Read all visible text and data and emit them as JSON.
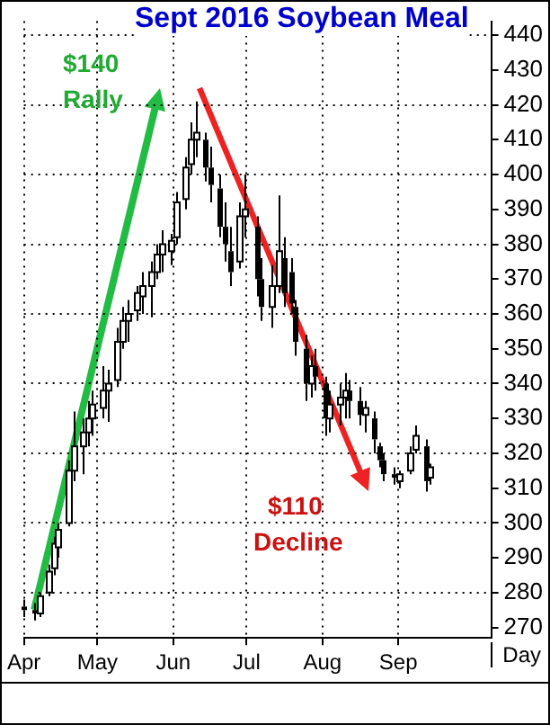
{
  "chart_data": {
    "type": "candlestick",
    "title": "Sept 2016 Soybean Meal",
    "xlabel": "Day",
    "annotations": [
      "$140",
      "Rally",
      "$110",
      "Decline"
    ],
    "x": [
      "2016-04-01",
      "2016-04-05",
      "2016-04-07",
      "2016-04-11",
      "2016-04-13",
      "2016-04-15",
      "2016-04-19",
      "2016-04-21",
      "2016-04-25",
      "2016-04-27",
      "2016-04-29",
      "2016-05-03",
      "2016-05-05",
      "2016-05-09",
      "2016-05-11",
      "2016-05-13",
      "2016-05-17",
      "2016-05-19",
      "2016-05-23",
      "2016-05-25",
      "2016-05-27",
      "2016-05-31",
      "2016-06-02",
      "2016-06-06",
      "2016-06-08",
      "2016-06-10",
      "2016-06-14",
      "2016-06-16",
      "2016-06-20",
      "2016-06-22",
      "2016-06-24",
      "2016-06-28",
      "2016-06-30",
      "2016-07-05",
      "2016-07-07",
      "2016-07-11",
      "2016-07-14",
      "2016-07-16",
      "2016-07-19",
      "2016-07-21",
      "2016-07-25",
      "2016-07-27",
      "2016-07-29",
      "2016-08-02",
      "2016-08-04",
      "2016-08-08",
      "2016-08-10",
      "2016-08-12",
      "2016-08-16",
      "2016-08-18",
      "2016-08-22",
      "2016-08-24",
      "2016-08-26",
      "2016-08-30",
      "2016-09-01",
      "2016-09-06",
      "2016-09-08",
      "2016-09-12",
      "2016-09-14"
    ],
    "ohlc": [
      [
        276,
        278,
        273,
        275
      ],
      [
        275,
        277,
        272,
        274
      ],
      [
        274,
        280,
        273,
        279
      ],
      [
        280,
        288,
        279,
        286
      ],
      [
        287,
        296,
        285,
        294
      ],
      [
        293,
        300,
        290,
        298
      ],
      [
        300,
        318,
        299,
        315
      ],
      [
        315,
        332,
        312,
        322
      ],
      [
        322,
        330,
        314,
        326
      ],
      [
        326,
        335,
        322,
        330
      ],
      [
        330,
        338,
        325,
        334
      ],
      [
        333,
        345,
        330,
        338
      ],
      [
        338,
        344,
        329,
        340
      ],
      [
        341,
        356,
        339,
        352
      ],
      [
        352,
        362,
        350,
        358
      ],
      [
        358,
        364,
        352,
        360
      ],
      [
        361,
        368,
        358,
        366
      ],
      [
        365,
        372,
        360,
        368
      ],
      [
        368,
        375,
        359,
        372
      ],
      [
        372,
        380,
        370,
        377
      ],
      [
        377,
        384,
        372,
        380
      ],
      [
        378,
        383,
        374,
        381
      ],
      [
        382,
        395,
        380,
        392
      ],
      [
        393,
        405,
        390,
        402
      ],
      [
        403,
        415,
        400,
        410
      ],
      [
        410,
        421,
        405,
        412
      ],
      [
        410,
        412,
        398,
        402
      ],
      [
        402,
        408,
        392,
        397
      ],
      [
        396,
        400,
        382,
        385
      ],
      [
        385,
        392,
        375,
        380
      ],
      [
        378,
        385,
        368,
        372
      ],
      [
        375,
        392,
        373,
        388
      ],
      [
        388,
        400,
        382,
        390
      ],
      [
        385,
        388,
        365,
        370
      ],
      [
        370,
        376,
        358,
        362
      ],
      [
        362,
        374,
        356,
        368
      ],
      [
        368,
        394,
        366,
        378
      ],
      [
        376,
        382,
        362,
        366
      ],
      [
        372,
        376,
        360,
        363
      ],
      [
        362,
        364,
        348,
        352
      ],
      [
        350,
        354,
        335,
        340
      ],
      [
        340,
        348,
        336,
        345
      ],
      [
        345,
        350,
        338,
        342
      ],
      [
        340,
        342,
        325,
        330
      ],
      [
        330,
        338,
        326,
        334
      ],
      [
        334,
        340,
        328,
        336
      ],
      [
        336,
        343,
        330,
        338
      ],
      [
        338,
        341,
        330,
        335
      ],
      [
        335,
        339,
        328,
        331
      ],
      [
        331,
        335,
        326,
        333
      ],
      [
        330,
        332,
        320,
        324
      ],
      [
        322,
        323,
        316,
        318
      ],
      [
        318,
        320,
        312,
        314
      ],
      [
        314,
        316,
        311,
        313
      ],
      [
        312,
        315,
        310,
        314
      ],
      [
        315,
        322,
        314,
        320
      ],
      [
        321,
        328,
        320,
        325
      ],
      [
        322,
        324,
        309,
        312
      ],
      [
        313,
        317,
        311,
        316
      ]
    ],
    "xlim": [
      "2016-04-01",
      "2016-10-09"
    ],
    "xticks": [
      {
        "value": "2016-04-01",
        "label": "Apr"
      },
      {
        "value": "2016-05-01",
        "label": "May"
      },
      {
        "value": "2016-06-01",
        "label": "Jun"
      },
      {
        "value": "2016-07-01",
        "label": "Jul"
      },
      {
        "value": "2016-08-01",
        "label": "Aug"
      },
      {
        "value": "2016-09-01",
        "label": "Sep"
      }
    ],
    "ylim": [
      267,
      444
    ],
    "yticks": [
      270,
      280,
      290,
      300,
      310,
      320,
      330,
      340,
      350,
      360,
      370,
      380,
      390,
      400,
      410,
      420,
      430,
      440
    ],
    "grid": true,
    "legend": false
  }
}
